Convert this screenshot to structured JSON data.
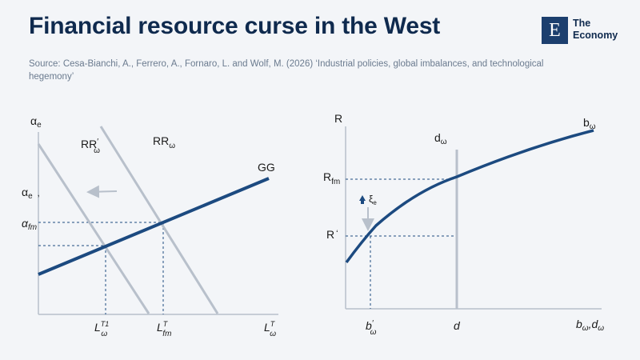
{
  "title": "Financial resource curse in the West",
  "source": "Source: Cesa-Bianchi, A., Ferrero, A., Fornaro, L. and Wolf, M. (2026) ‘Industrial policies, global imbalances, and technological hegemony’",
  "logo": {
    "mark": "E",
    "line1": "The",
    "line2": "Economy"
  },
  "colors": {
    "accent": "#1c4a80",
    "grey": "#b8c0cb",
    "title": "#0f2a4e"
  },
  "left_panel": {
    "y_axis_main": "α",
    "y_axis_sub": "e",
    "alpha_e_main": "α",
    "alpha_e_sub": "e",
    "alpha_e_comma": ",",
    "alpha_fm_main": "α",
    "alpha_fm_sub": "fm",
    "rr_prime_main": "RR",
    "rr_prime_sup": "′",
    "rr_prime_sub": "ω",
    "rr_main": "RR",
    "rr_sub": "ω",
    "gg": "GG",
    "tick1_main": "L",
    "tick1_sup": "T1",
    "tick1_sub": "ω",
    "tick2_main": "L",
    "tick2_sup": "T",
    "tick2_sub": "fm",
    "tick3_main": "L",
    "tick3_sup": "T",
    "tick3_sub": "ω"
  },
  "right_panel": {
    "y_axis": "R",
    "d_main": "d",
    "d_sub": "ω",
    "b_main": "b",
    "b_sub": "ω",
    "rfm_main": "R",
    "rfm_sub": "fm",
    "rprime_main": "R",
    "rprime_sup": "‘",
    "xi": "ξ",
    "xi_sub": "e",
    "tick_b_main": "b",
    "tick_b_sup": "′",
    "tick_b_sub": "ω",
    "tick_d": "d",
    "x_axis_b": "b",
    "x_axis_b_sub": "ω",
    "x_axis_sep": ",",
    "x_axis_d": "d",
    "x_axis_d_sub": "ω"
  }
}
